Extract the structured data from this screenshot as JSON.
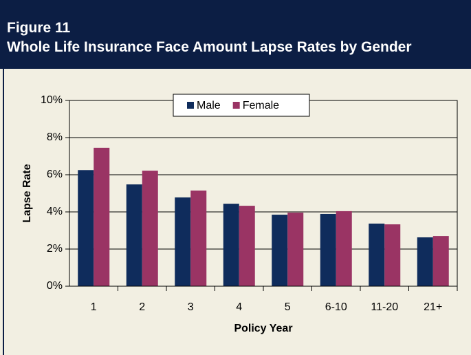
{
  "chart_data": {
    "type": "bar",
    "title": "Figure 11",
    "subtitle": "Whole Life Insurance Face Amount Lapse Rates by Gender",
    "x_label": "Policy Year",
    "y_label": "Lapse Rate",
    "categories": [
      "1",
      "2",
      "3",
      "4",
      "5",
      "6-10",
      "11-20",
      "21+"
    ],
    "series": [
      {
        "name": "Male",
        "color": "#0f2c5c",
        "values": [
          6.25,
          5.48,
          4.78,
          4.44,
          3.85,
          3.89,
          3.37,
          2.63
        ]
      },
      {
        "name": "Female",
        "color": "#9a3464",
        "values": [
          7.45,
          6.22,
          5.15,
          4.33,
          3.96,
          4.04,
          3.33,
          2.7
        ]
      }
    ],
    "ylim": [
      0,
      10
    ],
    "yticks": [
      {
        "value": 0,
        "label": "0%"
      },
      {
        "value": 2,
        "label": "2%"
      },
      {
        "value": 4,
        "label": "4%"
      },
      {
        "value": 6,
        "label": "6%"
      },
      {
        "value": 8,
        "label": "8%"
      },
      {
        "value": 10,
        "label": "10%"
      }
    ],
    "grid": true,
    "legend": "top"
  }
}
